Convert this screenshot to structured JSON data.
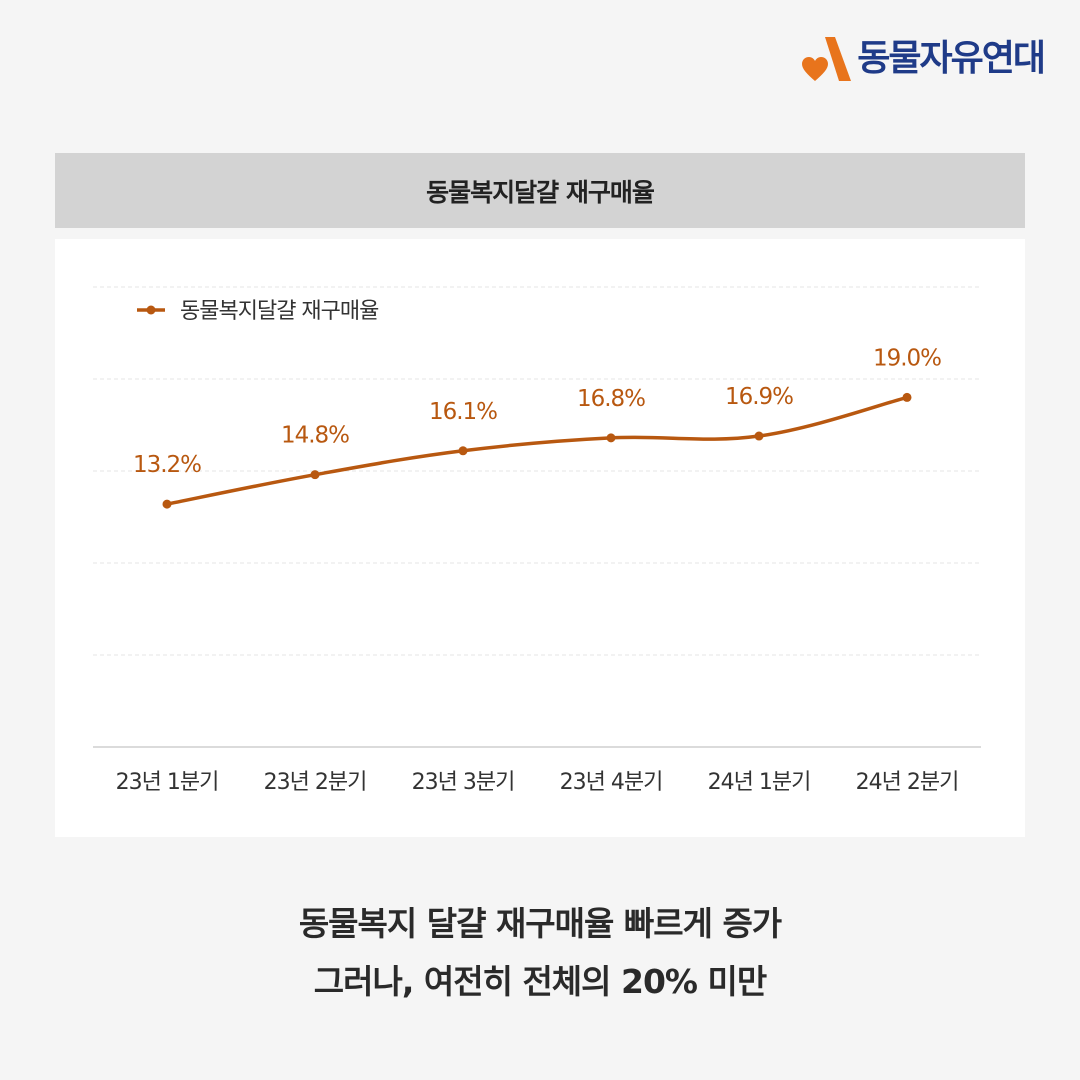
{
  "brand": {
    "name": "동물자유연대",
    "colors": {
      "orange": "#e8741c",
      "navy": "#1f3b88"
    },
    "icon": "heart-a-logo-icon"
  },
  "header": {
    "title": "동물복지달걀 재구매율"
  },
  "chart_data": {
    "type": "line",
    "title": "동물복지달걀 재구매율",
    "categories": [
      "23년 1분기",
      "23년 2분기",
      "23년 3분기",
      "23년 4분기",
      "24년 1분기",
      "24년 2분기"
    ],
    "series": [
      {
        "name": "동물복지달걀 재구매율",
        "values": [
          13.2,
          14.8,
          16.1,
          16.8,
          16.9,
          19.0
        ],
        "labels": [
          "13.2%",
          "14.8%",
          "16.1%",
          "16.8%",
          "16.9%",
          "19.0%"
        ],
        "color": "#b85810"
      }
    ],
    "legend": "top-left",
    "grid": true,
    "ylim": [
      0,
      25
    ],
    "xlabel": "",
    "ylabel": ""
  },
  "caption": {
    "line1": "동물복지 달걀 재구매율 빠르게 증가",
    "line2": "그러나, 여전히 전체의 20% 미만"
  }
}
